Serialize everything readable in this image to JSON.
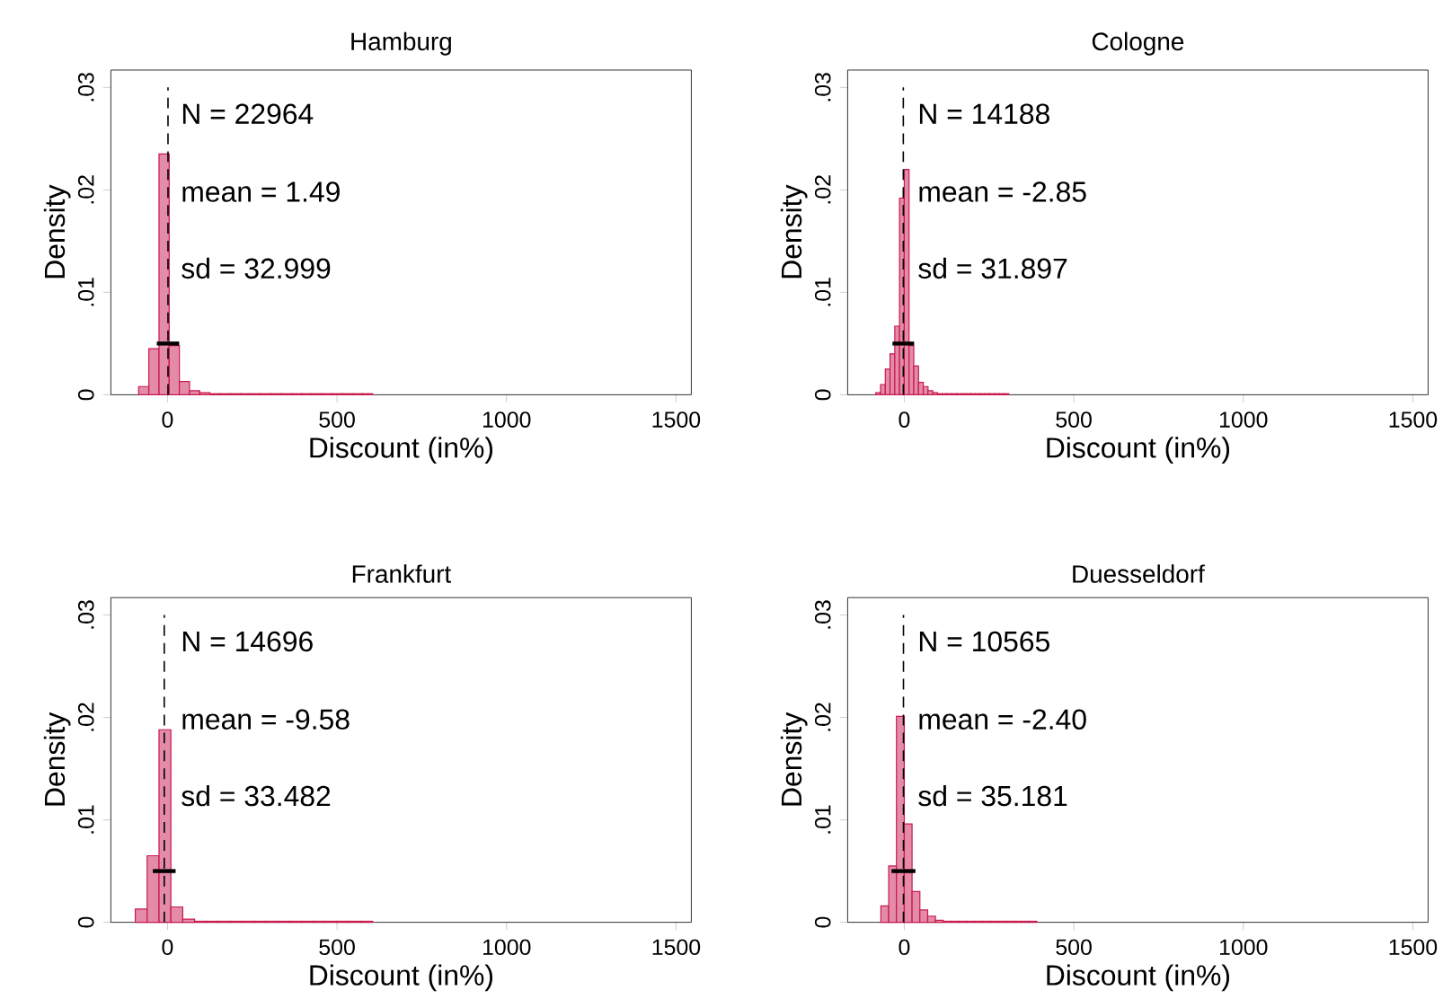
{
  "chart_data": [
    {
      "type": "histogram",
      "title": "Hamburg",
      "xlabel": "Discount (in%)",
      "ylabel": "Density",
      "xlim": [
        -167,
        1545
      ],
      "ylim": [
        0,
        0.0317
      ],
      "xticks": [
        0,
        500,
        1000,
        1500
      ],
      "yticks": [
        {
          "value": 0,
          "label": "0"
        },
        {
          "value": 0.01,
          "label": ".01"
        },
        {
          "value": 0.02,
          "label": ".02"
        },
        {
          "value": 0.03,
          "label": ".03"
        }
      ],
      "annotations": [
        "N = 22964",
        "mean = 1.49",
        "sd = 32.999"
      ],
      "ref_lines": [
        {
          "axis": "x",
          "value": 1.49,
          "line_style": "dashed",
          "color": "#000000"
        }
      ],
      "series": [
        {
          "color": "#c8194f",
          "bins": [
            -85,
            -55,
            -25,
            5,
            35,
            65,
            95,
            125,
            155,
            185,
            215,
            245,
            275,
            305,
            335,
            365,
            395,
            425,
            455,
            485,
            515,
            545,
            575,
            605
          ],
          "values": [
            0.0008,
            0.0045,
            0.0235,
            0.0048,
            0.0013,
            0.0004,
            0.0002,
            0.0001,
            0.0001,
            0.0001,
            0.0001,
            0.0001,
            0.0001,
            0.0001,
            0.0001,
            0.0001,
            0.0001,
            0.0001,
            0.0001,
            0.0001,
            0.0001,
            0.0001,
            0.0001
          ]
        },
        {
          "type": "line",
          "color": "#000000",
          "x": [
            -31.5,
            34.5
          ],
          "values": [
            0.005,
            0.005
          ]
        }
      ]
    },
    {
      "type": "histogram",
      "title": "Cologne",
      "xlabel": "Discount (in%)",
      "ylabel": "Density",
      "xlim": [
        -167,
        1545
      ],
      "ylim": [
        0,
        0.0317
      ],
      "xticks": [
        0,
        500,
        1000,
        1500
      ],
      "yticks": [
        {
          "value": 0,
          "label": "0"
        },
        {
          "value": 0.01,
          "label": ".01"
        },
        {
          "value": 0.02,
          "label": ".02"
        },
        {
          "value": 0.03,
          "label": ".03"
        }
      ],
      "annotations": [
        "N = 14188",
        "mean = -2.85",
        "sd = 31.897"
      ],
      "ref_lines": [
        {
          "axis": "x",
          "value": -2.85,
          "line_style": "dashed",
          "color": "#000000"
        }
      ],
      "series": [
        {
          "color": "#c8194f",
          "bins": [
            -84,
            -70,
            -56,
            -42,
            -28,
            -14,
            0,
            14,
            28,
            42,
            56,
            70,
            84,
            98,
            112,
            126,
            140,
            154,
            168,
            182,
            196,
            210,
            224,
            238,
            252,
            266,
            280,
            294,
            308
          ],
          "values": [
            0.0002,
            0.001,
            0.0025,
            0.004,
            0.0067,
            0.0192,
            0.022,
            0.0048,
            0.0028,
            0.0012,
            0.0008,
            0.0004,
            0.0002,
            0.0001,
            0.0001,
            0.0001,
            0.0001,
            0.0001,
            0.0001,
            0.0001,
            0.0001,
            0.0001,
            0.0001,
            0.0001,
            0.0001,
            0.0001,
            0.0001,
            0.0001
          ]
        },
        {
          "type": "line",
          "color": "#000000",
          "x": [
            -34.7,
            29.0
          ],
          "values": [
            0.005,
            0.005
          ]
        }
      ]
    },
    {
      "type": "histogram",
      "title": "Frankfurt",
      "xlabel": "Discount (in%)",
      "ylabel": "Density",
      "xlim": [
        -167,
        1545
      ],
      "ylim": [
        0,
        0.0317
      ],
      "xticks": [
        0,
        500,
        1000,
        1500
      ],
      "yticks": [
        {
          "value": 0,
          "label": "0"
        },
        {
          "value": 0.01,
          "label": ".01"
        },
        {
          "value": 0.02,
          "label": ".02"
        },
        {
          "value": 0.03,
          "label": ".03"
        }
      ],
      "annotations": [
        "N = 14696",
        "mean = -9.58",
        "sd = 33.482"
      ],
      "ref_lines": [
        {
          "axis": "x",
          "value": -9.58,
          "line_style": "dashed",
          "color": "#000000"
        }
      ],
      "series": [
        {
          "color": "#c8194f",
          "bins": [
            -95,
            -60,
            -25,
            10,
            45,
            80,
            115,
            150,
            185,
            220,
            255,
            290,
            325,
            360,
            395,
            430,
            465,
            500,
            535,
            570,
            605
          ],
          "values": [
            0.0013,
            0.0065,
            0.0188,
            0.0015,
            0.0003,
            0.0001,
            0.0001,
            0.0001,
            0.0001,
            0.0001,
            0.0001,
            0.0001,
            0.0001,
            0.0001,
            0.0001,
            0.0001,
            0.0001,
            0.0001,
            0.0001,
            0.0001
          ]
        },
        {
          "type": "line",
          "color": "#000000",
          "x": [
            -43.1,
            23.9
          ],
          "values": [
            0.005,
            0.005
          ]
        }
      ]
    },
    {
      "type": "histogram",
      "title": "Duesseldorf",
      "xlabel": "Discount (in%)",
      "ylabel": "Density",
      "xlim": [
        -167,
        1545
      ],
      "ylim": [
        0,
        0.0317
      ],
      "xticks": [
        0,
        500,
        1000,
        1500
      ],
      "yticks": [
        {
          "value": 0,
          "label": "0"
        },
        {
          "value": 0.01,
          "label": ".01"
        },
        {
          "value": 0.02,
          "label": ".02"
        },
        {
          "value": 0.03,
          "label": ".03"
        }
      ],
      "annotations": [
        "N = 10565",
        "mean = -2.40",
        "sd = 35.181"
      ],
      "ref_lines": [
        {
          "axis": "x",
          "value": -2.4,
          "line_style": "dashed",
          "color": "#000000"
        }
      ],
      "series": [
        {
          "color": "#c8194f",
          "bins": [
            -69,
            -46,
            -23,
            0,
            23,
            46,
            69,
            92,
            115,
            138,
            161,
            184,
            207,
            230,
            253,
            276,
            299,
            322,
            345,
            368,
            391
          ],
          "values": [
            0.0016,
            0.0055,
            0.0201,
            0.0096,
            0.003,
            0.0012,
            0.0006,
            0.0002,
            0.0001,
            0.0001,
            0.0001,
            0.0001,
            0.0001,
            0.0001,
            0.0001,
            0.0001,
            0.0001,
            0.0001,
            0.0001,
            0.0001
          ]
        },
        {
          "type": "line",
          "color": "#000000",
          "x": [
            -37.6,
            32.8
          ],
          "values": [
            0.005,
            0.005
          ]
        }
      ]
    }
  ]
}
